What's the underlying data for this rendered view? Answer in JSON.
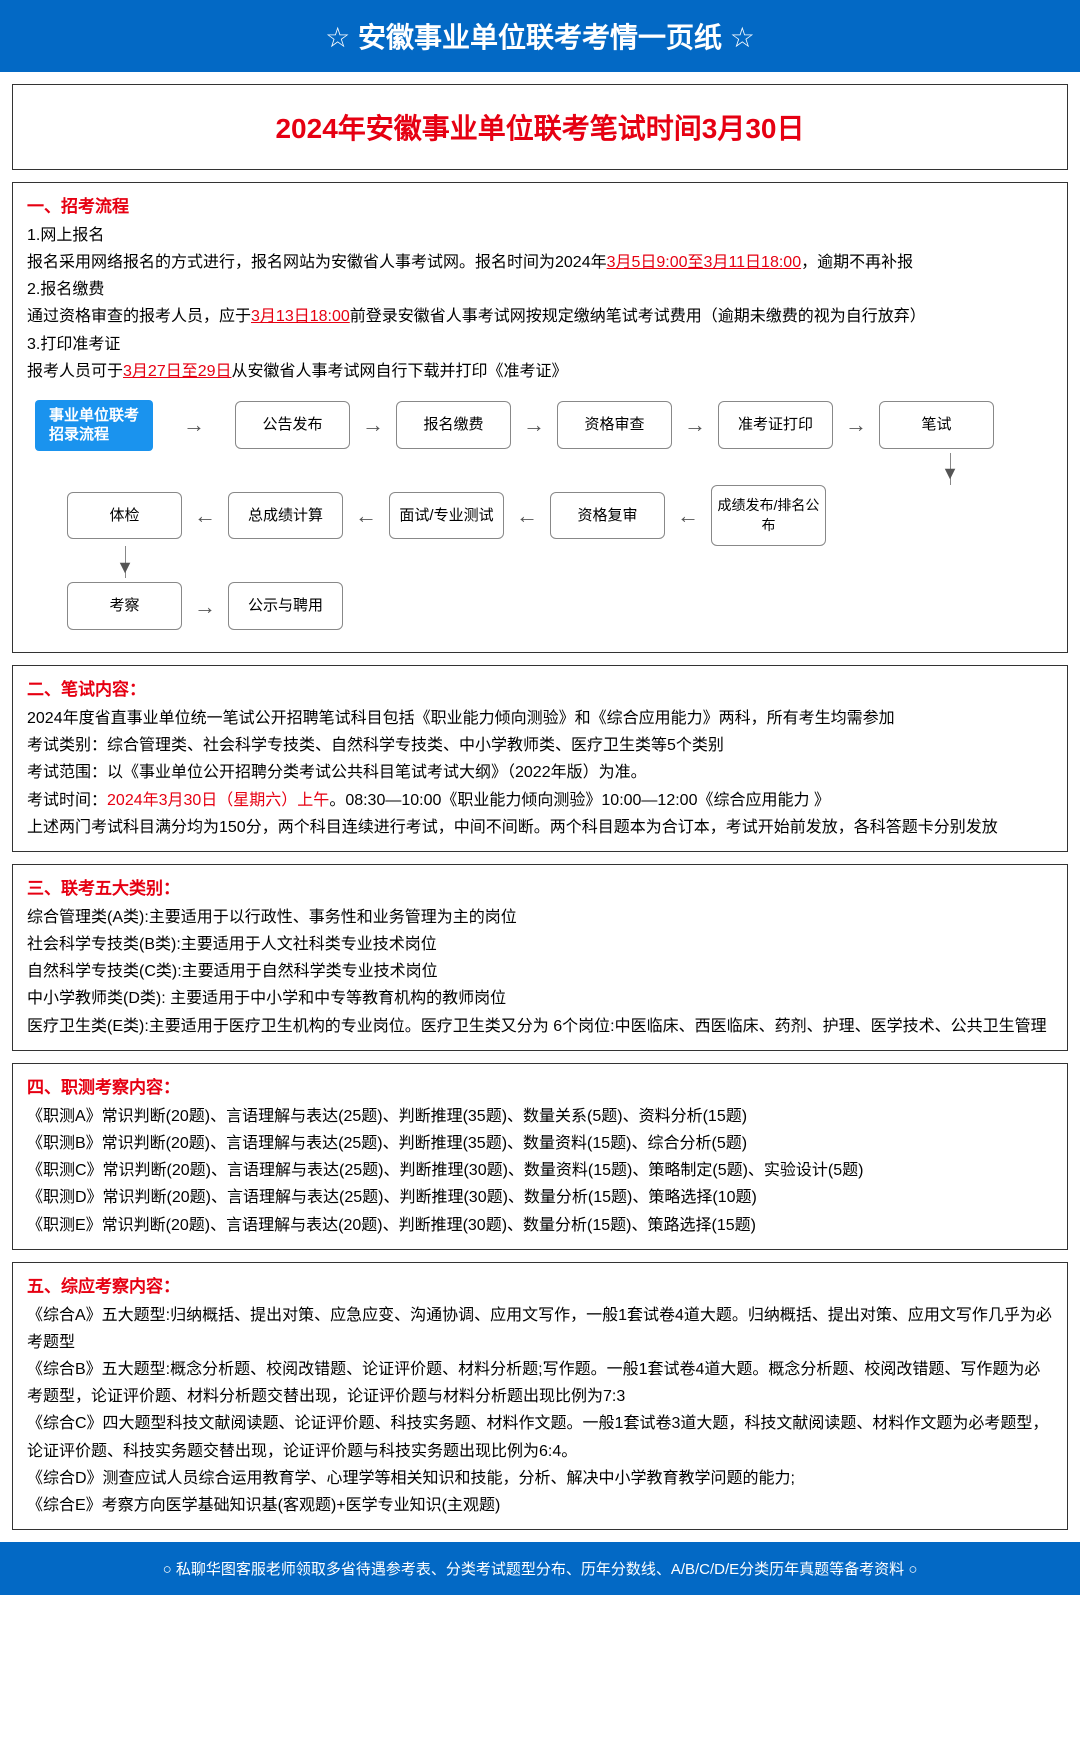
{
  "header": {
    "title": "安徽事业单位联考考情一页纸",
    "star": "☆"
  },
  "mainTitle": "2024年安徽事业单位联考笔试时间3月30日",
  "s1": {
    "title": "一、招考流程",
    "l1": "1.网上报名",
    "l2a": "报名采用网络报名的方式进行，报名网站为安徽省人事考试网。报名时间为2024年",
    "l2red": "3月5日9:00至3月11日18:00",
    "l2b": "，逾期不再补报",
    "l3": "2.报名缴费",
    "l4a": "通过资格审查的报考人员，应于",
    "l4red": "3月13日18:00",
    "l4b": "前登录安徽省人事考试网按规定缴纳笔试考试费用（逾期未缴费的视为自行放弃）",
    "l5": "3.打印准考证",
    "l6a": "报考人员可于",
    "l6red": "3月27日至29日",
    "l6b": "从安徽省人事考试网自行下载并打印《准考证》"
  },
  "flow": {
    "labelL1": "事业单位联考",
    "labelL2": "招录流程",
    "r1": [
      "公告发布",
      "报名缴费",
      "资格审查",
      "准考证打印",
      "笔试"
    ],
    "r2": [
      "体检",
      "总成绩计算",
      "面试/专业测试",
      "资格复审",
      "成绩发布/排名公布"
    ],
    "r3": [
      "考察",
      "公示与聘用"
    ]
  },
  "s2": {
    "title": "二、笔试内容：",
    "l1": "2024年度省直事业单位统一笔试公开招聘笔试科目包括《职业能力倾向测验》和《综合应用能力》两科，所有考生均需参加",
    "l2": "考试类别：综合管理类、社会科学专技类、自然科学专技类、中小学教师类、医疗卫生类等5个类别",
    "l3": "考试范围：以《事业单位公开招聘分类考试公共科目笔试考试大纲》（2022年版）为准。",
    "l4a": "考试时间：",
    "l4red": "2024年3月30日（星期六）上午",
    "l4b": "。08:30—10:00《职业能力倾向测验》10:00—12:00《综合应用能力 》",
    "l5": "上述两门考试科目满分均为150分，两个科目连续进行考试，中间不间断。两个科目题本为合订本，考试开始前发放，各科答题卡分别发放"
  },
  "s3": {
    "title": "三、联考五大类别：",
    "lines": [
      "综合管理类(A类):主要适用于以行政性、事务性和业务管理为主的岗位",
      "社会科学专技类(B类):主要适用于人文社科类专业技术岗位",
      "自然科学专技类(C类):主要适用于自然科学类专业技术岗位",
      "中小学教师类(D类): 主要适用于中小学和中专等教育机构的教师岗位",
      "医疗卫生类(E类):主要适用于医疗卫生机构的专业岗位。医疗卫生类又分为 6个岗位:中医临床、西医临床、药剂、护理、医学技术、公共卫生管理"
    ]
  },
  "s4": {
    "title": "四、职测考察内容：",
    "lines": [
      "《职测A》常识判断(20题)、言语理解与表达(25题)、判断推理(35题)、数量关系(5题)、资料分析(15题)",
      "《职测B》常识判断(20题)、言语理解与表达(25题)、判断推理(35题)、数量资料(15题)、综合分析(5题)",
      "《职测C》常识判断(20题)、言语理解与表达(25题)、判断推理(30题)、数量资料(15题)、策略制定(5题)、实验设计(5题)",
      "《职测D》常识判断(20题)、言语理解与表达(25题)、判断推理(30题)、数量分析(15题)、策略选择(10题)",
      "《职测E》常识判断(20题)、言语理解与表达(20题)、判断推理(30题)、数量分析(15题)、策路选择(15题)"
    ]
  },
  "s5": {
    "title": "五、综应考察内容：",
    "lines": [
      "《综合A》五大题型:归纳概括、提出对策、应急应变、沟通协调、应用文写作，一般1套试卷4道大题。归纳概括、提出对策、应用文写作几乎为必考题型",
      "《综合B》五大题型:概念分析题、校阅改错题、论证评价题、材料分析题;写作题。一般1套试卷4道大题。概念分析题、校阅改错题、写作题为必考题型，论证评价题、材料分析题交替出现，论证评价题与材料分析题出现比例为7:3",
      "《综合C》四大题型科技文献阅读题、论证评价题、科技实务题、材料作文题。一般1套试卷3道大题，科技文献阅读题、材料作文题为必考题型，论证评价题、科技实务题交替出现，论证评价题与科技实务题出现比例为6:4。",
      "《综合D》测查应试人员综合运用教育学、心理学等相关知识和技能，分析、解决中小学教育教学问题的能力;",
      "《综合E》考察方向医学基础知识基(客观题)+医学专业知识(主观题)"
    ]
  },
  "footer": "○ 私聊华图客服老师领取多省待遇参考表、分类考试题型分布、历年分数线、A/B/C/D/E分类历年真题等备考资料 ○"
}
